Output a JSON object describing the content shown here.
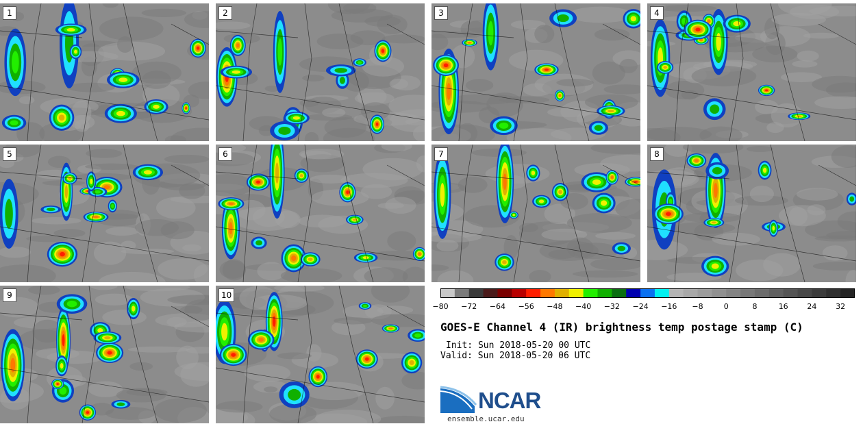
{
  "panels": [
    {
      "label": "1"
    },
    {
      "label": "2"
    },
    {
      "label": "3"
    },
    {
      "label": "4"
    },
    {
      "label": "5"
    },
    {
      "label": "6"
    },
    {
      "label": "7"
    },
    {
      "label": "8"
    },
    {
      "label": "9"
    },
    {
      "label": "10"
    }
  ],
  "colorbar": {
    "ticks": [
      "−80",
      "−72",
      "−64",
      "−56",
      "−48",
      "−40",
      "−32",
      "−24",
      "−16",
      "−8",
      "0",
      "8",
      "16",
      "24",
      "32"
    ],
    "min": -80,
    "max": 40,
    "colors": [
      "#c8c8c8",
      "#7a7a7a",
      "#3a3a3a",
      "#4a1a1a",
      "#7a0000",
      "#b80000",
      "#ff1e00",
      "#ff7800",
      "#e0b000",
      "#f0f000",
      "#22ee00",
      "#10b000",
      "#0a6e10",
      "#0000b0",
      "#0a70f0",
      "#00f0f0",
      "#b4b4b4",
      "#a8a8a8",
      "#9c9c9c",
      "#909090",
      "#848484",
      "#787878",
      "#6c6c6c",
      "#606060",
      "#545454",
      "#484848",
      "#3c3c3c",
      "#303030",
      "#242424"
    ]
  },
  "title": "GOES-E Channel 4 (IR) brightness temp postage stamp (C)",
  "init": "Init: Sun 2018-05-20 00 UTC",
  "valid": "Valid: Sun 2018-05-20 06 UTC",
  "logo": {
    "text": "NCAR"
  },
  "site": "ensemble.ucar.edu"
}
